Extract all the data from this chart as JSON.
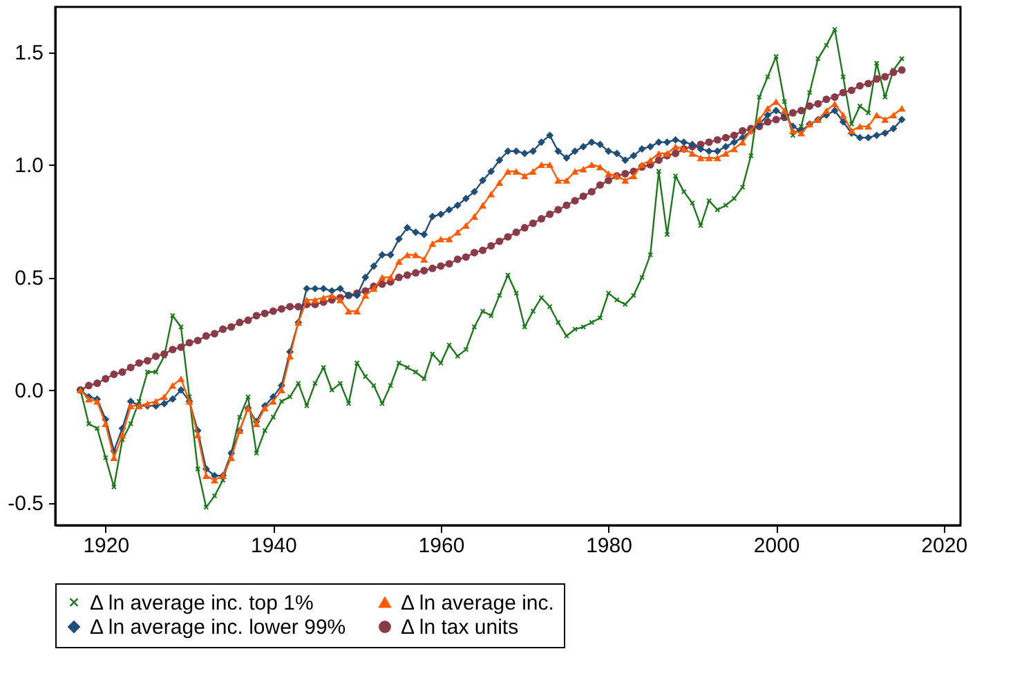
{
  "chart_data": {
    "type": "line",
    "x": [
      1917,
      1918,
      1919,
      1920,
      1921,
      1922,
      1923,
      1924,
      1925,
      1926,
      1927,
      1928,
      1929,
      1930,
      1931,
      1932,
      1933,
      1934,
      1935,
      1936,
      1937,
      1938,
      1939,
      1940,
      1941,
      1942,
      1943,
      1944,
      1945,
      1946,
      1947,
      1948,
      1949,
      1950,
      1951,
      1952,
      1953,
      1954,
      1955,
      1956,
      1957,
      1958,
      1959,
      1960,
      1961,
      1962,
      1963,
      1964,
      1965,
      1966,
      1967,
      1968,
      1969,
      1970,
      1971,
      1972,
      1973,
      1974,
      1975,
      1976,
      1977,
      1978,
      1979,
      1980,
      1981,
      1982,
      1983,
      1984,
      1985,
      1986,
      1987,
      1988,
      1989,
      1990,
      1991,
      1992,
      1993,
      1994,
      1995,
      1996,
      1997,
      1998,
      1999,
      2000,
      2001,
      2002,
      2003,
      2004,
      2005,
      2006,
      2007,
      2008,
      2009,
      2010,
      2011,
      2012,
      2013,
      2014,
      2015
    ],
    "series": [
      {
        "name": "Δ ln average inc. top 1%",
        "color": "#1a7a1a",
        "marker": "cross",
        "values": [
          0.0,
          -0.15,
          -0.17,
          -0.3,
          -0.43,
          -0.22,
          -0.15,
          -0.05,
          0.08,
          0.08,
          0.15,
          0.33,
          0.28,
          -0.03,
          -0.35,
          -0.52,
          -0.47,
          -0.4,
          -0.28,
          -0.12,
          -0.03,
          -0.28,
          -0.18,
          -0.12,
          -0.05,
          -0.03,
          0.03,
          -0.07,
          0.03,
          0.1,
          0.0,
          0.03,
          -0.06,
          0.12,
          0.06,
          0.02,
          -0.06,
          0.02,
          0.12,
          0.1,
          0.08,
          0.05,
          0.16,
          0.12,
          0.2,
          0.15,
          0.18,
          0.28,
          0.35,
          0.33,
          0.42,
          0.51,
          0.43,
          0.28,
          0.35,
          0.41,
          0.37,
          0.3,
          0.24,
          0.27,
          0.28,
          0.3,
          0.32,
          0.43,
          0.4,
          0.38,
          0.42,
          0.5,
          0.6,
          0.97,
          0.69,
          0.95,
          0.88,
          0.83,
          0.73,
          0.84,
          0.8,
          0.82,
          0.85,
          0.9,
          1.04,
          1.3,
          1.39,
          1.48,
          1.28,
          1.13,
          1.17,
          1.32,
          1.47,
          1.53,
          1.6,
          1.39,
          1.18,
          1.26,
          1.23,
          1.45,
          1.3,
          1.42,
          1.47
        ]
      },
      {
        "name": "Δ ln average inc.",
        "color": "#ff5a00",
        "marker": "triangle",
        "values": [
          0.0,
          -0.04,
          -0.05,
          -0.15,
          -0.3,
          -0.2,
          -0.07,
          -0.07,
          -0.06,
          -0.05,
          -0.03,
          0.02,
          0.05,
          -0.05,
          -0.2,
          -0.38,
          -0.4,
          -0.38,
          -0.3,
          -0.18,
          -0.08,
          -0.15,
          -0.08,
          -0.05,
          0.0,
          0.15,
          0.3,
          0.4,
          0.4,
          0.41,
          0.42,
          0.4,
          0.35,
          0.35,
          0.42,
          0.45,
          0.5,
          0.5,
          0.57,
          0.6,
          0.6,
          0.58,
          0.65,
          0.67,
          0.67,
          0.7,
          0.73,
          0.77,
          0.82,
          0.87,
          0.92,
          0.97,
          0.97,
          0.95,
          0.97,
          1.0,
          1.0,
          0.93,
          0.93,
          0.97,
          0.98,
          1.0,
          0.99,
          0.96,
          0.95,
          0.93,
          0.95,
          1.0,
          1.02,
          1.05,
          1.05,
          1.08,
          1.07,
          1.05,
          1.03,
          1.03,
          1.03,
          1.05,
          1.07,
          1.1,
          1.15,
          1.2,
          1.25,
          1.28,
          1.24,
          1.15,
          1.14,
          1.18,
          1.2,
          1.24,
          1.27,
          1.22,
          1.15,
          1.17,
          1.17,
          1.22,
          1.2,
          1.22,
          1.25
        ]
      },
      {
        "name": "Δ ln average inc. lower 99%",
        "color": "#1f4e79",
        "marker": "diamond",
        "values": [
          0.0,
          -0.03,
          -0.04,
          -0.13,
          -0.27,
          -0.17,
          -0.05,
          -0.07,
          -0.07,
          -0.07,
          -0.06,
          -0.04,
          0.0,
          -0.05,
          -0.18,
          -0.35,
          -0.38,
          -0.38,
          -0.28,
          -0.18,
          -0.08,
          -0.14,
          -0.07,
          -0.03,
          0.02,
          0.17,
          0.3,
          0.45,
          0.45,
          0.45,
          0.44,
          0.45,
          0.42,
          0.42,
          0.5,
          0.55,
          0.6,
          0.6,
          0.67,
          0.72,
          0.7,
          0.69,
          0.77,
          0.78,
          0.8,
          0.82,
          0.85,
          0.88,
          0.93,
          0.97,
          1.02,
          1.06,
          1.06,
          1.05,
          1.06,
          1.1,
          1.13,
          1.06,
          1.03,
          1.06,
          1.08,
          1.1,
          1.09,
          1.06,
          1.05,
          1.02,
          1.04,
          1.07,
          1.08,
          1.1,
          1.1,
          1.11,
          1.1,
          1.09,
          1.07,
          1.06,
          1.06,
          1.08,
          1.1,
          1.12,
          1.15,
          1.18,
          1.22,
          1.24,
          1.22,
          1.17,
          1.15,
          1.18,
          1.2,
          1.22,
          1.24,
          1.19,
          1.14,
          1.12,
          1.12,
          1.13,
          1.14,
          1.16,
          1.2
        ]
      },
      {
        "name": "Δ ln tax units",
        "color": "#8b3a47",
        "marker": "circle",
        "values": [
          0.0,
          0.02,
          0.03,
          0.05,
          0.07,
          0.08,
          0.1,
          0.12,
          0.13,
          0.15,
          0.16,
          0.18,
          0.19,
          0.21,
          0.22,
          0.24,
          0.25,
          0.27,
          0.28,
          0.3,
          0.31,
          0.33,
          0.34,
          0.35,
          0.36,
          0.37,
          0.37,
          0.38,
          0.38,
          0.39,
          0.4,
          0.41,
          0.42,
          0.43,
          0.44,
          0.46,
          0.47,
          0.48,
          0.5,
          0.51,
          0.52,
          0.53,
          0.54,
          0.55,
          0.56,
          0.58,
          0.59,
          0.61,
          0.62,
          0.64,
          0.66,
          0.68,
          0.7,
          0.72,
          0.74,
          0.76,
          0.78,
          0.8,
          0.82,
          0.84,
          0.86,
          0.88,
          0.91,
          0.93,
          0.95,
          0.96,
          0.97,
          0.99,
          1.0,
          1.02,
          1.04,
          1.05,
          1.07,
          1.08,
          1.09,
          1.1,
          1.11,
          1.12,
          1.13,
          1.15,
          1.16,
          1.17,
          1.19,
          1.2,
          1.21,
          1.23,
          1.24,
          1.26,
          1.27,
          1.29,
          1.3,
          1.32,
          1.33,
          1.35,
          1.36,
          1.38,
          1.39,
          1.41,
          1.42
        ]
      }
    ],
    "xlim": [
      1914,
      2022
    ],
    "xticks": [
      1920,
      1940,
      1960,
      1980,
      2000,
      2020
    ],
    "ylim": [
      -0.6,
      1.7
    ],
    "yticks": [
      {
        "value": -0.5,
        "label": "-0.5"
      },
      {
        "value": 0,
        "label": "0.0"
      },
      {
        "value": 0.5,
        "label": "0.5"
      },
      {
        "value": 1,
        "label": "1.0"
      },
      {
        "value": 1.5,
        "label": "1.5"
      }
    ],
    "grid": false,
    "legend": "bottom",
    "line_style": "solid"
  }
}
